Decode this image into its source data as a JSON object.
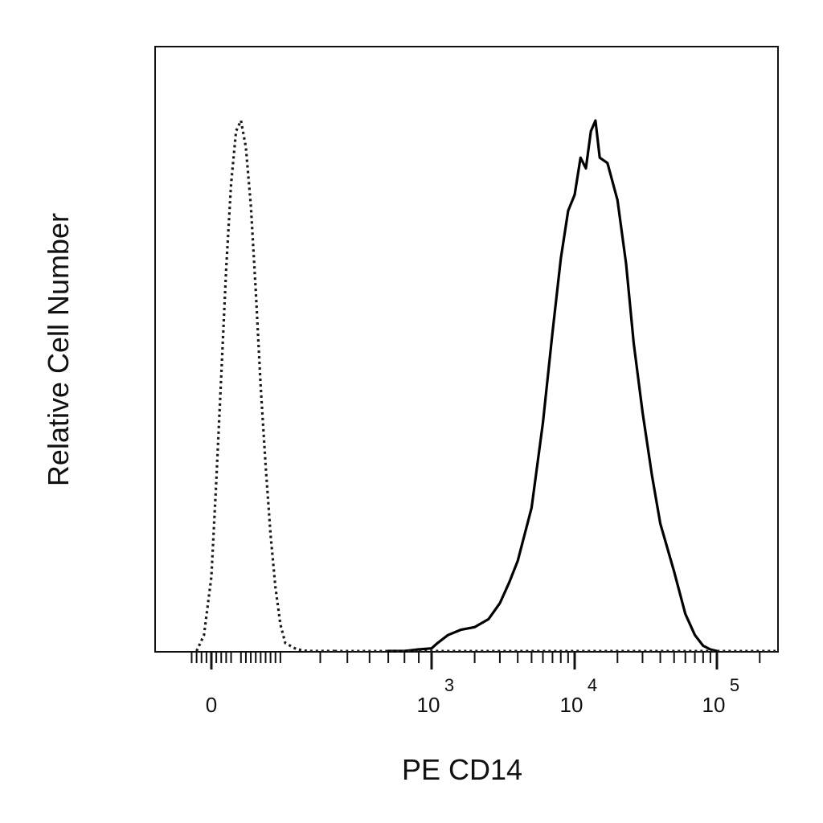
{
  "chart_data": {
    "type": "line",
    "title": "",
    "xlabel": "PE CD14",
    "ylabel": "Relative Cell Number",
    "x_scale": "biexponential",
    "x_ticks": [
      {
        "value": 0,
        "base": "0",
        "exp": ""
      },
      {
        "value": 1000,
        "base": "10",
        "exp": "3"
      },
      {
        "value": 10000,
        "base": "10",
        "exp": "4"
      },
      {
        "value": 100000,
        "base": "10",
        "exp": "5"
      }
    ],
    "ylim": [
      0,
      100
    ],
    "grid": false,
    "legend": "none",
    "series": [
      {
        "style": "dotted",
        "color": "#1a1a1a",
        "x": [
          -60,
          -30,
          0,
          20,
          40,
          60,
          80,
          100,
          120,
          140,
          160,
          180,
          200,
          220,
          240,
          260,
          280,
          300,
          330,
          360,
          400,
          450
        ],
        "y": [
          0,
          3,
          14,
          32,
          52,
          72,
          88,
          98,
          100,
          95,
          84,
          68,
          50,
          35,
          22,
          12,
          5,
          1.5,
          0.3,
          0,
          0,
          0
        ]
      },
      {
        "style": "solid",
        "color": "#000000",
        "x": [
          700,
          800,
          900,
          1000,
          1100,
          1300,
          1600,
          2000,
          2500,
          3000,
          3500,
          4000,
          5000,
          6000,
          7000,
          8000,
          9000,
          10000,
          11000,
          12000,
          13000,
          14000,
          15000,
          17000,
          20000,
          23000,
          26000,
          30000,
          35000,
          40000,
          50000,
          60000,
          70000,
          80000,
          90000,
          100000
        ],
        "y": [
          0,
          0,
          0.3,
          0.5,
          1.5,
          3,
          4,
          4.5,
          6,
          9,
          13,
          17,
          27,
          43,
          60,
          74,
          83,
          86,
          93,
          91,
          98,
          100,
          93,
          92,
          85,
          73,
          58,
          45,
          33,
          24,
          15,
          7,
          3,
          1,
          0.3,
          0
        ]
      }
    ]
  }
}
